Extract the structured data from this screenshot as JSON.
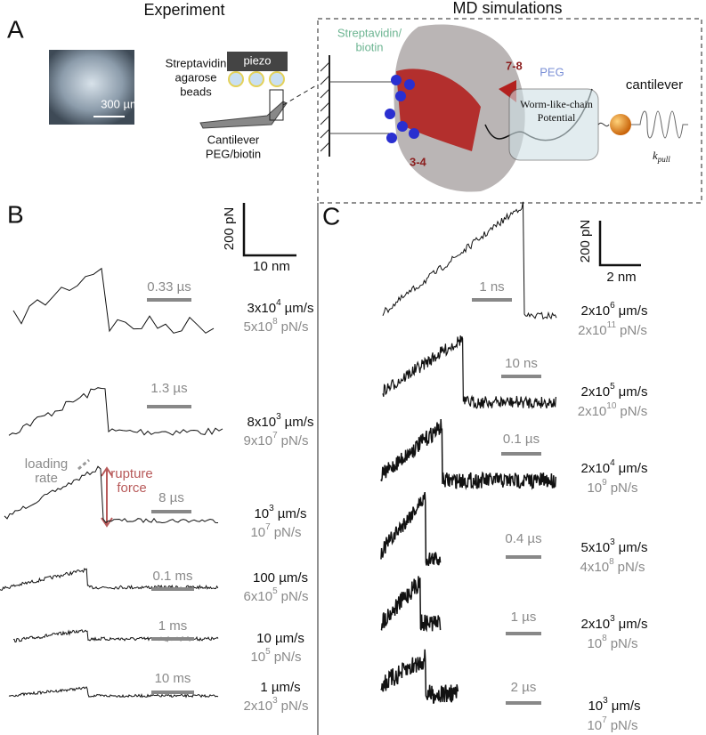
{
  "panel_a": {
    "letter": "A",
    "experiment_title": "Experiment",
    "md_title": "MD simulations",
    "image_scale": "300 µm",
    "piezo": "piezo",
    "beads": [
      "Streptavidin",
      "agarose",
      "beads"
    ],
    "cantilever": [
      "Cantilever",
      "PEG/biotin"
    ],
    "md_streptavidin": [
      "Streptavidin/",
      "biotin"
    ],
    "md_label_78": "7-8",
    "md_label_34": "3-4",
    "md_peg": "PEG",
    "md_wlc": [
      "Worm-like-chain",
      "Potential"
    ],
    "md_cantilever": "cantilever",
    "md_kpull": {
      "base": "k",
      "sub": "pull"
    }
  },
  "panel_b": {
    "letter": "B",
    "scale_force": "200 pN",
    "scale_length": "10 nm",
    "loading_rate": [
      "loading",
      "rate"
    ],
    "rupture_force": [
      "rupture",
      "force"
    ],
    "rows": [
      {
        "time": "0.33 µs",
        "speed": {
          "base": "3x10",
          "exp": "4",
          "unit": "µm/s"
        },
        "rate": {
          "base": "5x10",
          "exp": "8",
          "unit": "pN/s"
        }
      },
      {
        "time": "1.3 µs",
        "speed": {
          "base": "8x10",
          "exp": "3",
          "unit": "µm/s"
        },
        "rate": {
          "base": "9x10",
          "exp": "7",
          "unit": "pN/s"
        }
      },
      {
        "time": "8 µs",
        "speed": {
          "base": "10",
          "exp": "3",
          "unit": "µm/s"
        },
        "rate": {
          "base": "10",
          "exp": "7",
          "unit": "pN/s"
        }
      },
      {
        "time": "0.1 ms",
        "speed": {
          "base": "100 µm/s"
        },
        "rate": {
          "base": "6x10",
          "exp": "5",
          "unit": "pN/s"
        }
      },
      {
        "time": "1 ms",
        "speed": {
          "base": "10 µm/s"
        },
        "rate": {
          "base": "10",
          "exp": "5",
          "unit": "pN/s"
        }
      },
      {
        "time": "10 ms",
        "speed": {
          "base": "1 µm/s"
        },
        "rate": {
          "base": "2x10",
          "exp": "3",
          "unit": "pN/s"
        }
      }
    ]
  },
  "panel_c": {
    "letter": "C",
    "scale_force": "200 pN",
    "scale_length": "2 nm",
    "rows": [
      {
        "time": "1 ns",
        "speed": {
          "base": "2x10",
          "exp": "6",
          "unit": "μm/s"
        },
        "rate": {
          "base": "2x10",
          "exp": "11",
          "unit": "pN/s"
        }
      },
      {
        "time": "10 ns",
        "speed": {
          "base": "2x10",
          "exp": "5",
          "unit": "μm/s"
        },
        "rate": {
          "base": "2x10",
          "exp": "10",
          "unit": "pN/s"
        }
      },
      {
        "time": "0.1 µs",
        "speed": {
          "base": "2x10",
          "exp": "4",
          "unit": "μm/s"
        },
        "rate": {
          "base": "10",
          "exp": "9",
          "unit": "pN/s"
        }
      },
      {
        "time": "0.4 µs",
        "speed": {
          "base": "5x10",
          "exp": "3",
          "unit": "μm/s"
        },
        "rate": {
          "base": "4x10",
          "exp": "8",
          "unit": "pN/s"
        }
      },
      {
        "time": "1 µs",
        "speed": {
          "base": "2x10",
          "exp": "3",
          "unit": "μm/s"
        },
        "rate": {
          "base": "10",
          "exp": "8",
          "unit": "pN/s"
        }
      },
      {
        "time": "2 µs",
        "speed": {
          "base": "10",
          "exp": "3",
          "unit": "μm/s"
        },
        "rate": {
          "base": "10",
          "exp": "7",
          "unit": "pN/s"
        }
      }
    ]
  }
}
